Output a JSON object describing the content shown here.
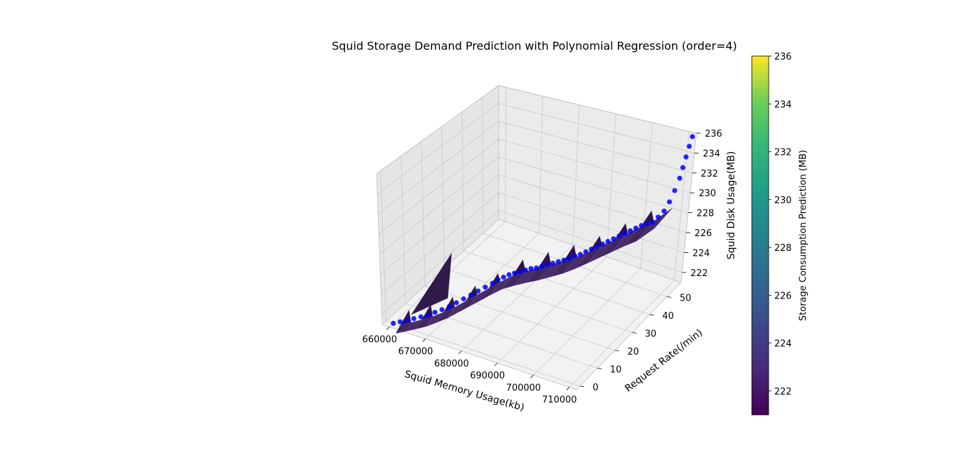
{
  "chart_data": {
    "type": "scatter",
    "title": "Squid Storage Demand Prediction with Polynomial Regression (order=4)",
    "xlabel": "Squid Memory Usage(kb)",
    "ylabel": "Request Rate(/min)",
    "zlabel": "Squid Disk Usage(MB)",
    "colorbar_label": "Storage Consumption Prediction (MB)",
    "colormap": "viridis",
    "colorbar_range": [
      221,
      236
    ],
    "colorbar_ticks": [
      "222",
      "224",
      "226",
      "228",
      "230",
      "232",
      "234",
      "236"
    ],
    "x_ticks": [
      "660000",
      "670000",
      "680000",
      "690000",
      "700000",
      "710000"
    ],
    "y_ticks": [
      "0",
      "10",
      "20",
      "30",
      "40",
      "50"
    ],
    "z_ticks": [
      "222",
      "224",
      "226",
      "228",
      "230",
      "232",
      "234",
      "236"
    ],
    "xlim": [
      658000,
      712000
    ],
    "ylim": [
      -2,
      58
    ],
    "zlim": [
      221,
      236
    ],
    "grid": true,
    "scatter_color": "#0000ff",
    "surface_color": "#3b1f5c",
    "series": [
      {
        "type": "scatter",
        "points": [
          [
            660000,
            0,
            221.0
          ],
          [
            661500,
            0.8,
            221.2
          ],
          [
            663000,
            1.6,
            221.4
          ],
          [
            664500,
            2.4,
            221.6
          ],
          [
            666000,
            3.3,
            221.8
          ],
          [
            667500,
            4.2,
            222.0
          ],
          [
            669000,
            5.1,
            222.3
          ],
          [
            670500,
            6.0,
            222.6
          ],
          [
            672000,
            7.0,
            222.9
          ],
          [
            673500,
            8.0,
            223.3
          ],
          [
            675000,
            9.0,
            223.7
          ],
          [
            676500,
            10.0,
            224.1
          ],
          [
            678000,
            11.0,
            224.5
          ],
          [
            679500,
            12.0,
            224.9
          ],
          [
            681000,
            13.0,
            225.3
          ],
          [
            682000,
            14.0,
            225.6
          ],
          [
            683000,
            15.0,
            225.8
          ],
          [
            684000,
            16.0,
            226.0
          ],
          [
            685000,
            17.0,
            226.1
          ],
          [
            686000,
            18.0,
            226.2
          ],
          [
            687000,
            19.0,
            226.3
          ],
          [
            688000,
            20.0,
            226.4
          ],
          [
            689000,
            21.0,
            226.4
          ],
          [
            690000,
            22.0,
            226.5
          ],
          [
            691000,
            23.0,
            226.6
          ],
          [
            692000,
            24.0,
            226.7
          ],
          [
            693000,
            25.0,
            226.8
          ],
          [
            694000,
            26.0,
            226.9
          ],
          [
            695000,
            27.0,
            227.0
          ],
          [
            696000,
            28.0,
            227.2
          ],
          [
            697000,
            29.0,
            227.3
          ],
          [
            698000,
            30.0,
            227.5
          ],
          [
            699000,
            31.0,
            227.7
          ],
          [
            700000,
            32.0,
            227.9
          ],
          [
            701000,
            33.0,
            228.1
          ],
          [
            702000,
            34.0,
            228.3
          ],
          [
            703000,
            35.0,
            228.5
          ],
          [
            704000,
            36.0,
            228.7
          ],
          [
            705000,
            37.0,
            228.9
          ],
          [
            706000,
            38.0,
            229.1
          ],
          [
            707000,
            39.0,
            229.3
          ],
          [
            708000,
            40.0,
            229.5
          ],
          [
            709000,
            41.0,
            229.6
          ],
          [
            710000,
            42.0,
            229.7
          ],
          [
            710500,
            44.0,
            229.9
          ],
          [
            711000,
            46.0,
            230.2
          ],
          [
            711300,
            48.0,
            230.8
          ],
          [
            711500,
            50.0,
            231.6
          ],
          [
            711600,
            52.0,
            232.5
          ],
          [
            711700,
            53.0,
            233.4
          ],
          [
            711800,
            54.0,
            234.3
          ],
          [
            711900,
            55.0,
            235.2
          ],
          [
            712000,
            56.0,
            236.0
          ]
        ]
      }
    ]
  }
}
